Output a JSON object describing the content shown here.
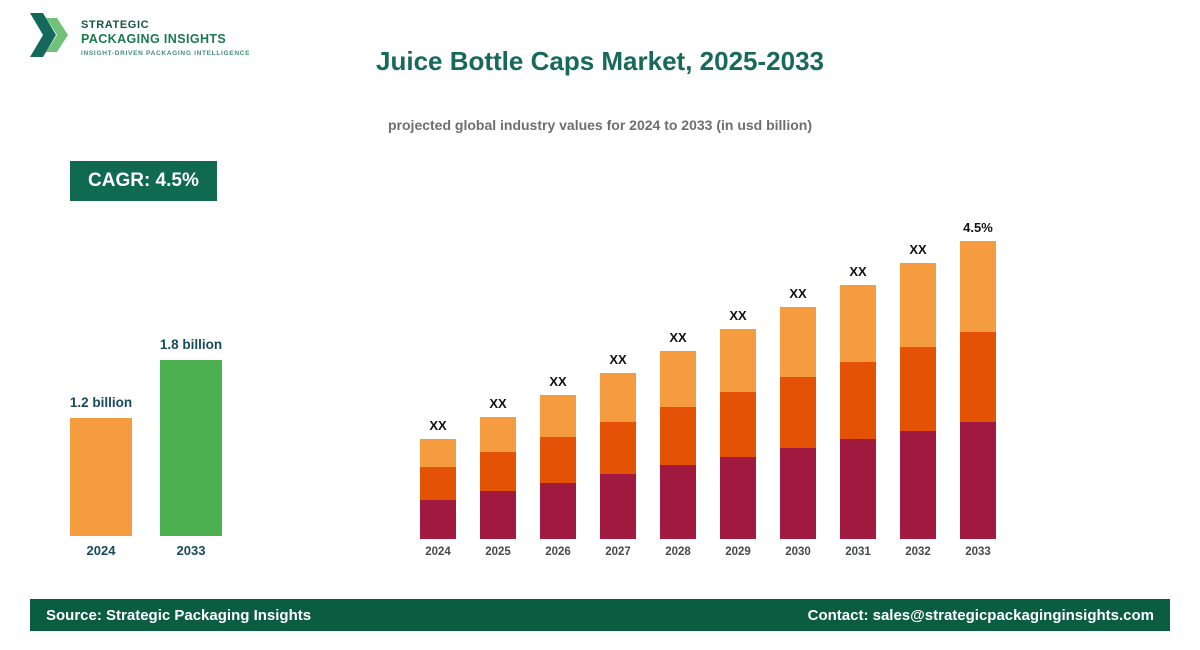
{
  "brand": {
    "line1": "STRATEGIC",
    "line2": "PACKAGING INSIGHTS",
    "tagline": "INSIGHT-DRIVEN PACKAGING INTELLIGENCE",
    "logo_colors": {
      "dark": "#14695a",
      "light": "#63ba6b"
    }
  },
  "header": {
    "title": "Juice Bottle Caps Market, 2025-2033",
    "subtitle": "projected global industry values for 2024 to 2033 (in usd billion)"
  },
  "cagr": {
    "label": "CAGR: 4.5%",
    "bg_color": "#0f6a50",
    "text_color": "#ffffff"
  },
  "chart_data": [
    {
      "type": "bar",
      "name": "market-size-comparison",
      "categories": [
        "2024",
        "2033"
      ],
      "values": [
        1.2,
        1.8
      ],
      "value_labels": [
        "1.2 billion",
        "1.8 billion"
      ],
      "bar_colors": [
        "#f59c40",
        "#4caf50"
      ],
      "unit": "usd billion"
    },
    {
      "type": "bar",
      "subtype": "stacked",
      "name": "projected-values-by-year",
      "categories": [
        "2024",
        "2025",
        "2026",
        "2027",
        "2028",
        "2029",
        "2030",
        "2031",
        "2032",
        "2033"
      ],
      "series": [
        {
          "name": "segment-bottom",
          "color": "#a01a40",
          "values": [
            39,
            48,
            56,
            65,
            74,
            82,
            91,
            100,
            108,
            117
          ]
        },
        {
          "name": "segment-middle",
          "color": "#e35205",
          "values": [
            33,
            39,
            46,
            52,
            58,
            65,
            71,
            77,
            84,
            90
          ]
        },
        {
          "name": "segment-top",
          "color": "#f59c40",
          "values": [
            28,
            35,
            42,
            49,
            56,
            63,
            70,
            77,
            84,
            91
          ]
        }
      ],
      "bar_labels": [
        "XX",
        "XX",
        "XX",
        "XX",
        "XX",
        "XX",
        "XX",
        "XX",
        "XX",
        "4.5%"
      ]
    }
  ],
  "footer": {
    "source": "Source: Strategic Packaging Insights",
    "contact": "Contact: sales@strategicpackaginginsights.com",
    "bg_color": "#0b5d41"
  }
}
